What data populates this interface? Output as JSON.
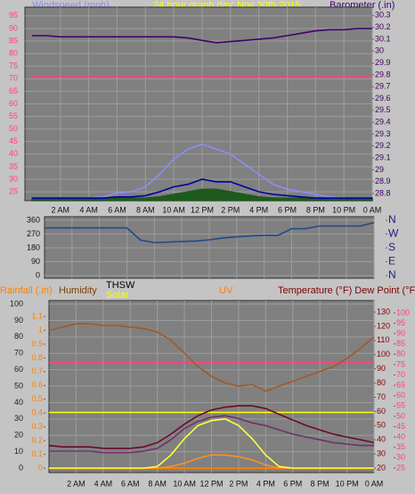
{
  "chart_data": [
    {
      "type": "line",
      "left_label": "Windspeed (mph)",
      "subtitle": "24 hour graph day",
      "date": "Nov 30th 2015",
      "right_label": "Barometer (.in)",
      "x": [
        0,
        1,
        2,
        3,
        4,
        5,
        6,
        7,
        8,
        9,
        10,
        11,
        12,
        13,
        14,
        15,
        16,
        17,
        18,
        19,
        20,
        21,
        22,
        23,
        24
      ],
      "xlim": [
        -0.5,
        24
      ],
      "xticks": [
        {
          "value": 2,
          "label": "2 AM"
        },
        {
          "value": 4,
          "label": "4 AM"
        },
        {
          "value": 6,
          "label": "6 AM"
        },
        {
          "value": 8,
          "label": "8 AM"
        },
        {
          "value": 10,
          "label": "10 AM"
        },
        {
          "value": 12,
          "label": "12 PM"
        },
        {
          "value": 14,
          "label": "2 PM"
        },
        {
          "value": 16,
          "label": "4 PM"
        },
        {
          "value": 18,
          "label": "6 PM"
        },
        {
          "value": 20,
          "label": "8 PM"
        },
        {
          "value": 22,
          "label": "10 PM"
        },
        {
          "value": 24,
          "label": "0 AM"
        }
      ],
      "ylim": [
        21.5,
        98.5
      ],
      "yticks": [
        95,
        90,
        85,
        80,
        75,
        70,
        65,
        60,
        55,
        50,
        45,
        40,
        35,
        30,
        25
      ],
      "y2lim": [
        28.74,
        30.37
      ],
      "y2ticks": [
        30.3,
        30.2,
        30.1,
        30,
        29.9,
        29.8,
        29.7,
        29.6,
        29.5,
        29.4,
        29.3,
        29.2,
        29.1,
        29,
        28.9,
        28.8
      ],
      "grid": true,
      "series": [
        {
          "color": "#8c8cff",
          "values": [
            22.5,
            22.5,
            22.5,
            22.5,
            22.5,
            23,
            24.5,
            25,
            27,
            32,
            38,
            42,
            44,
            42,
            40,
            36,
            32,
            28,
            26,
            25,
            24,
            23,
            22.5,
            22.5,
            22.5
          ]
        },
        {
          "color": "#1e5a1e",
          "fill": true,
          "values": [
            22.5,
            22.5,
            22.5,
            22.5,
            22.5,
            22.5,
            22.5,
            22.5,
            22.5,
            23,
            24,
            25,
            26,
            26,
            25,
            24,
            23,
            22.5,
            22.5,
            22.5,
            22.5,
            22.5,
            22.5,
            22.5,
            22.5
          ]
        },
        {
          "color": "#0000a0",
          "values": [
            22.5,
            22.5,
            22.5,
            22.5,
            22.5,
            22.5,
            23,
            23,
            23.5,
            25,
            27,
            28,
            30,
            29,
            29,
            27,
            25,
            24,
            23.5,
            23,
            22.5,
            22.5,
            22.5,
            22.5,
            22.5
          ]
        },
        {
          "color": "#ff4080",
          "values": [
            71,
            71,
            71,
            71,
            71,
            71,
            71,
            71,
            71,
            71,
            71,
            71,
            71,
            71,
            71,
            71,
            71,
            71,
            71,
            71,
            71,
            71,
            71,
            71,
            71
          ]
        },
        {
          "color": "#400070",
          "axis": "y2",
          "values": [
            30.13,
            30.13,
            30.12,
            30.12,
            30.12,
            30.12,
            30.12,
            30.12,
            30.12,
            30.12,
            30.12,
            30.11,
            30.09,
            30.07,
            30.08,
            30.09,
            30.1,
            30.11,
            30.13,
            30.15,
            30.17,
            30.18,
            30.18,
            30.19,
            30.19
          ]
        }
      ]
    },
    {
      "type": "line",
      "x": [
        0,
        1,
        2,
        3,
        4,
        5,
        6,
        7,
        8,
        9,
        10,
        11,
        12,
        13,
        14,
        15,
        16,
        17,
        18,
        19,
        20,
        21,
        22,
        23,
        24
      ],
      "xlim": [
        0,
        24
      ],
      "xticks": [
        2,
        4,
        6,
        8,
        10,
        12,
        14,
        16,
        18,
        20,
        22,
        24
      ],
      "ylim": [
        -17,
        383
      ],
      "yticks": [
        360,
        270,
        180,
        90,
        0
      ],
      "y2lim": [
        -17,
        383
      ],
      "y2ticks": [
        {
          "value": 360,
          "label": "N"
        },
        {
          "value": 270,
          "label": "W"
        },
        {
          "value": 180,
          "label": "S"
        },
        {
          "value": 90,
          "label": "E"
        },
        {
          "value": 0,
          "label": "N"
        }
      ],
      "grid": true,
      "series": [
        {
          "color": "#1e4a8c",
          "values": [
            310,
            310,
            310,
            310,
            310,
            310,
            310,
            230,
            215,
            218,
            222,
            225,
            232,
            245,
            252,
            258,
            262,
            262,
            305,
            305,
            322,
            322,
            322,
            322,
            345
          ]
        }
      ]
    },
    {
      "type": "line",
      "rain_label": "Rainfall (.in)",
      "humidity_label": "Humidity",
      "thsw_label": "THSW",
      "solar_label": "Solar",
      "uv_label": "UV",
      "temp_label": "Temperature (°F) Dew Point (°F)",
      "x": [
        0,
        1,
        2,
        3,
        4,
        5,
        6,
        7,
        8,
        9,
        10,
        11,
        12,
        13,
        14,
        15,
        16,
        17,
        18,
        19,
        20,
        21,
        22,
        23,
        24
      ],
      "xlim": [
        0,
        24
      ],
      "xticks": [
        {
          "value": 2,
          "label": "2 AM"
        },
        {
          "value": 4,
          "label": "4 AM"
        },
        {
          "value": 6,
          "label": "6 AM"
        },
        {
          "value": 8,
          "label": "8 AM"
        },
        {
          "value": 10,
          "label": "10 AM"
        },
        {
          "value": 12,
          "label": "12 PM"
        },
        {
          "value": 14,
          "label": "2 PM"
        },
        {
          "value": 16,
          "label": "4 PM"
        },
        {
          "value": 18,
          "label": "6 PM"
        },
        {
          "value": 20,
          "label": "8 PM"
        },
        {
          "value": 22,
          "label": "10 PM"
        },
        {
          "value": 24,
          "label": "0 AM"
        }
      ],
      "ylim": [
        -2.7,
        102.2
      ],
      "yticks": [
        100,
        90,
        80,
        70,
        60,
        50,
        40,
        30,
        20,
        10,
        0
      ],
      "y3lim": [
        -0.032,
        1.2165
      ],
      "y3ticks": [
        1.1,
        1,
        0.9,
        0.8,
        0.7,
        0.6,
        0.5,
        0.4,
        0.3,
        0.2,
        0.1,
        0
      ],
      "y2lim": [
        16.9,
        138.2
      ],
      "y2ticks": [
        130,
        120,
        110,
        100,
        90,
        80,
        70,
        60,
        50,
        40,
        30,
        20
      ],
      "y4lim": [
        22.8,
        106
      ],
      "y4ticks": [
        100,
        95,
        90,
        85,
        80,
        75,
        70,
        65,
        60,
        55,
        50,
        45,
        40,
        35,
        30,
        25
      ],
      "grid": true,
      "series": [
        {
          "color": "#ff8000",
          "axis": "y3",
          "values": [
            0,
            0,
            0,
            0,
            0,
            0,
            0,
            0,
            0,
            0,
            0,
            0,
            0,
            0,
            0,
            0,
            0,
            0,
            0,
            0,
            0,
            0,
            0,
            0,
            0
          ]
        },
        {
          "color": "#ffff00",
          "values": [
            34,
            34,
            34,
            34,
            34,
            34,
            34,
            34,
            34,
            34,
            34,
            34,
            34,
            34,
            34,
            34,
            34,
            34,
            34,
            34,
            34,
            34,
            34,
            34,
            34
          ]
        },
        {
          "color": "#ff4080",
          "axis": "y4",
          "values": [
            76,
            76,
            76,
            76,
            76,
            76,
            76,
            76,
            76,
            76,
            76,
            76,
            76,
            76,
            76,
            76,
            76,
            76,
            76,
            76,
            76,
            76,
            76,
            76,
            76
          ]
        },
        {
          "color": "#a05a28",
          "values": [
            84,
            86,
            88,
            88,
            87,
            87,
            86,
            85,
            83,
            78,
            70,
            62,
            56,
            52,
            50,
            51,
            47,
            50,
            53,
            56,
            59,
            62,
            67,
            73,
            80
          ]
        },
        {
          "color": "#ff9020",
          "values": [
            0,
            0,
            0,
            0,
            0,
            0,
            0,
            0,
            0,
            1,
            3,
            6,
            8,
            8,
            7,
            5,
            2,
            0,
            0,
            0,
            0,
            0,
            0,
            0,
            0
          ]
        },
        {
          "color": "#ffff40",
          "values": [
            0,
            0,
            0,
            0,
            0,
            0,
            0,
            0,
            1,
            8,
            18,
            26,
            29,
            30,
            26,
            18,
            8,
            1,
            0,
            0,
            0,
            0,
            0,
            0,
            0
          ]
        },
        {
          "color": "#70306a",
          "axis": "y2",
          "values": [
            32,
            32,
            32,
            32,
            31,
            31,
            31,
            32,
            34,
            40,
            48,
            53,
            56,
            57,
            55,
            52,
            50,
            47,
            44,
            42,
            40,
            38,
            37,
            36,
            36
          ]
        },
        {
          "color": "#6a0a2a",
          "axis": "y2",
          "values": [
            36,
            35,
            35,
            35,
            34,
            34,
            34,
            35,
            38,
            44,
            51,
            57,
            61,
            63,
            64,
            64,
            62,
            58,
            54,
            50,
            47,
            44,
            42,
            40,
            38
          ]
        }
      ]
    }
  ]
}
